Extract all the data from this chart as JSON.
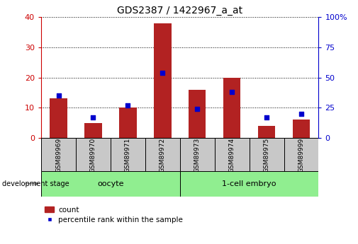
{
  "title": "GDS2387 / 1422967_a_at",
  "samples": [
    "GSM89969",
    "GSM89970",
    "GSM89971",
    "GSM89972",
    "GSM89973",
    "GSM89974",
    "GSM89975",
    "GSM89999"
  ],
  "counts": [
    13,
    5,
    10,
    38,
    16,
    20,
    4,
    6
  ],
  "percentiles": [
    35,
    17,
    27,
    54,
    24,
    38,
    17,
    20
  ],
  "groups": [
    {
      "label": "oocyte",
      "start": 0,
      "end": 4,
      "color": "#90EE90"
    },
    {
      "label": "1-cell embryo",
      "start": 4,
      "end": 8,
      "color": "#90EE90"
    }
  ],
  "left_ylim": [
    0,
    40
  ],
  "right_ylim": [
    0,
    100
  ],
  "left_yticks": [
    0,
    10,
    20,
    30,
    40
  ],
  "right_yticks": [
    0,
    25,
    50,
    75,
    100
  ],
  "bar_color": "#B22222",
  "marker_color": "#0000CD",
  "bar_width": 0.5,
  "grid_color": "#000000",
  "tick_label_color_left": "#CC0000",
  "right_axis_color": "#0000CD",
  "sample_box_color": "#C8C8C8",
  "group_box_color": "#90EE90"
}
